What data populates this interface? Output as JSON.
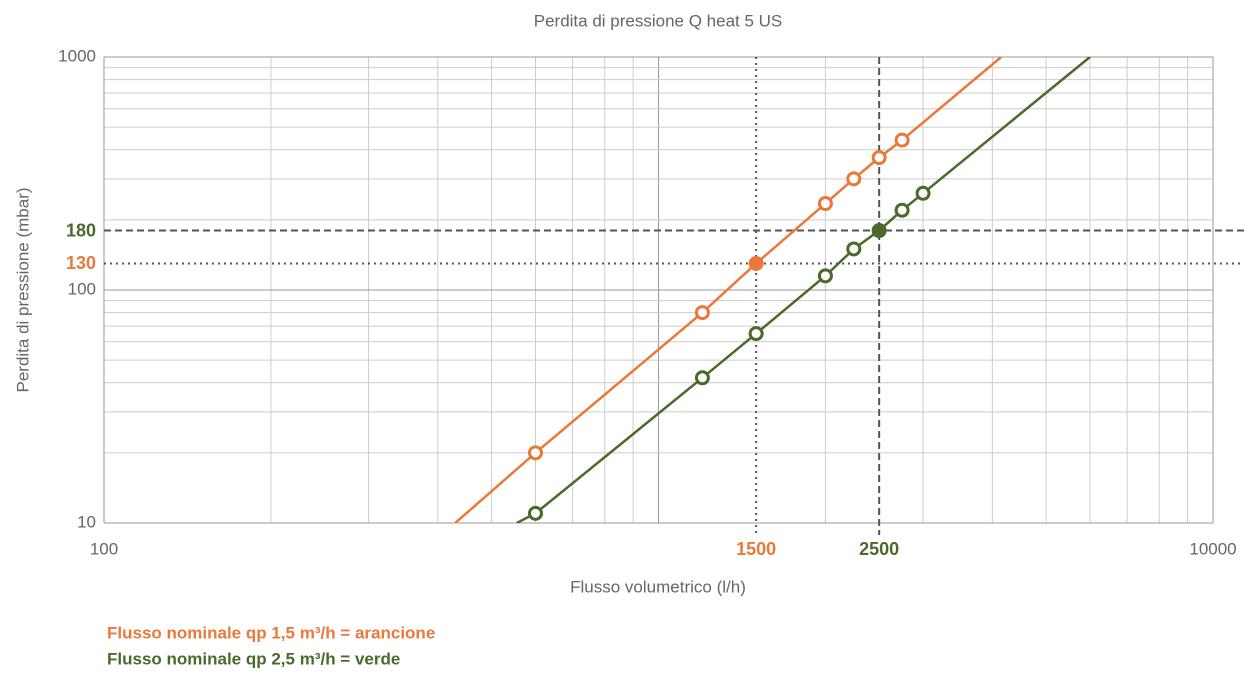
{
  "chart_data": {
    "type": "line",
    "title": "Perdita di pressione Q heat 5 US",
    "xlabel": "Flusso volumetrico (l/h)",
    "ylabel": "Perdita di pressione (mbar)",
    "xscale": "log",
    "yscale": "log",
    "xlim": [
      100,
      10000
    ],
    "ylim": [
      10,
      1000
    ],
    "xticks": [
      100,
      10000
    ],
    "yticks": [
      10,
      100,
      1000
    ],
    "grid": true,
    "minor_grid": true,
    "series": [
      {
        "color": "#e8793a",
        "line_x": [
          430,
          600,
          1200,
          1500,
          2000,
          2250,
          2500,
          2750,
          4150
        ],
        "line_values": [
          10,
          20,
          80,
          130,
          235,
          300,
          370,
          440,
          1000
        ],
        "x": [
          600,
          1200,
          1500,
          2000,
          2250,
          2500,
          2750
        ],
        "values": [
          20,
          80,
          130,
          235,
          300,
          370,
          440
        ]
      },
      {
        "color": "#4a6a2b",
        "line_x": [
          555,
          600,
          1200,
          1500,
          2000,
          2250,
          2500,
          2750,
          3000,
          6000
        ],
        "line_values": [
          10,
          11,
          42,
          65,
          115,
          150,
          180,
          220,
          260,
          1000
        ],
        "x": [
          600,
          1200,
          1500,
          2000,
          2250,
          2500,
          2750,
          3000
        ],
        "values": [
          11,
          42,
          65,
          115,
          150,
          180,
          220,
          260
        ]
      }
    ],
    "hlines": [
      {
        "value": 180,
        "color": "#4a6a2b",
        "style": "dashed"
      },
      {
        "value": 130,
        "color": "#e8793a",
        "style": "dotted"
      }
    ],
    "vlines": [
      {
        "value": 1500,
        "color": "#e8793a",
        "style": "dotted"
      },
      {
        "value": 2500,
        "color": "#4a6a2b",
        "style": "dashed"
      }
    ],
    "legend": [
      {
        "text": "Flusso nominale qp 1,5 m³/h = arancione",
        "color": "#e8793a"
      },
      {
        "text": "Flusso nominale qp 2,5 m³/h = verde",
        "color": "#4a6a2b"
      }
    ]
  }
}
